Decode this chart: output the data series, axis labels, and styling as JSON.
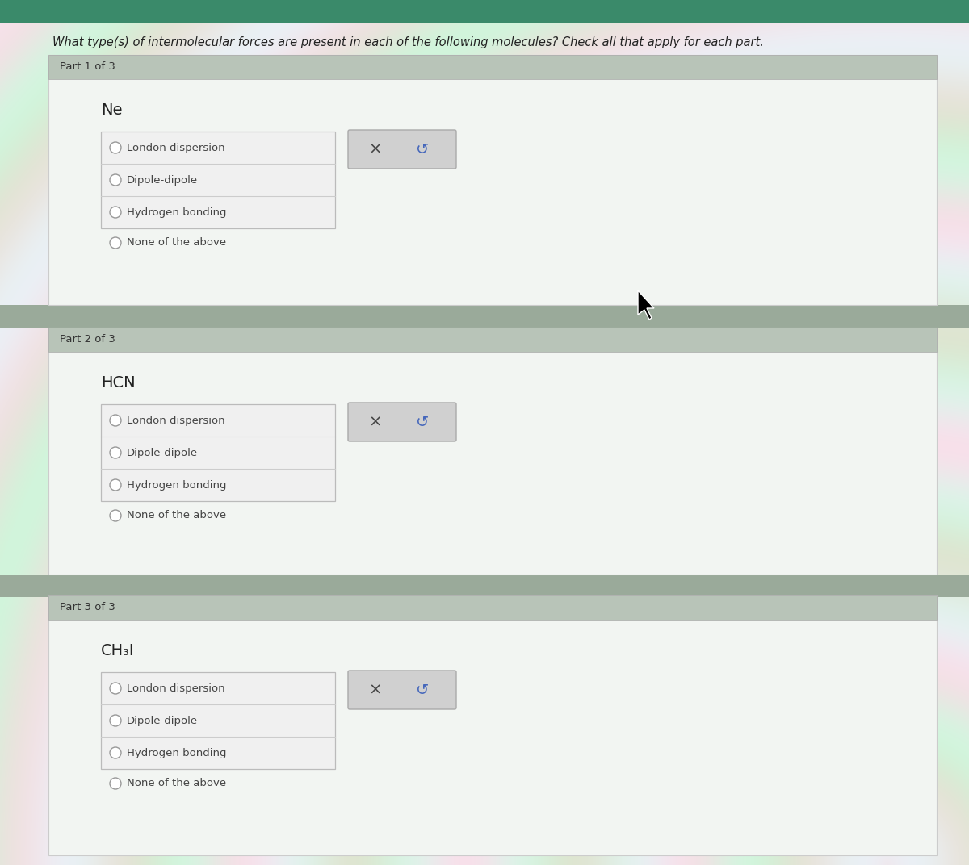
{
  "title": "What type(s) of intermolecular forces are present in each of the following molecules? Check all that apply for each part.",
  "parts": [
    {
      "label": "Part 1 of 3",
      "molecule": "Ne",
      "options": [
        "London dispersion",
        "Dipole-dipole",
        "Hydrogen bonding"
      ],
      "none_option": "None of the above"
    },
    {
      "label": "Part 2 of 3",
      "molecule": "HCN",
      "options": [
        "London dispersion",
        "Dipole-dipole",
        "Hydrogen bonding"
      ],
      "none_option": "None of the above"
    },
    {
      "label": "Part 3 of 3",
      "molecule": "CH₃I",
      "options": [
        "London dispersion",
        "Dipole-dipole",
        "Hydrogen bonding"
      ],
      "none_option": "None of the above"
    }
  ],
  "top_bar_color": "#3a8a6a",
  "panel_bg": "#f0f3f0",
  "section_header_bg": "#b8c4b8",
  "separator_bg": "#9aaa9a",
  "outer_bg": "#dde8dd",
  "option_box_bg": "#eeeeee",
  "option_box_border": "#cccccc",
  "button_bg": "#d4d4d4",
  "button_border": "#aaaaaa",
  "text_color": "#333333",
  "checkbox_border": "#999999",
  "undo_color": "#4466bb"
}
